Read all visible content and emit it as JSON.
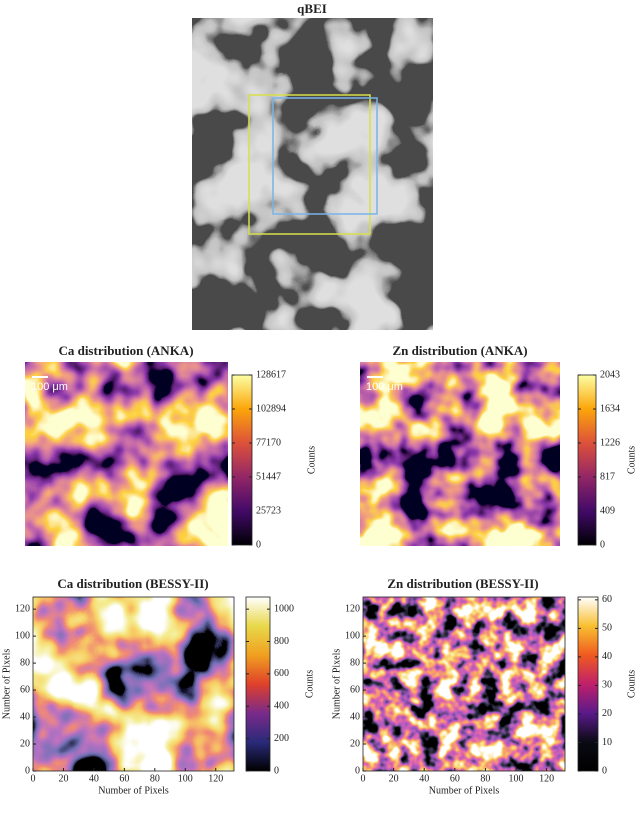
{
  "chart_data": [
    {
      "type": "image",
      "title": "qBEI",
      "colormap": "gray"
    },
    {
      "type": "heatmap",
      "title": "Ca distribution (ANKA)",
      "annotation": "100 μm",
      "colormap": "inferno",
      "clim": [
        0,
        128617
      ],
      "cticks": [
        0,
        25723,
        51447,
        77170,
        102894,
        128617
      ],
      "colorbar_label": "Counts"
    },
    {
      "type": "heatmap",
      "title": "Zn distribution (ANKA)",
      "annotation": "100 μm",
      "colormap": "inferno",
      "clim": [
        0,
        2043
      ],
      "cticks": [
        0,
        409,
        817,
        1226,
        1634,
        2043
      ],
      "colorbar_label": "Counts"
    },
    {
      "type": "heatmap",
      "title": "Ca distribution (BESSY-II)",
      "xlabel": "Number of Pixels",
      "ylabel": "Number of Pixels",
      "xlim": [
        0,
        132
      ],
      "ylim": [
        0,
        129
      ],
      "xticks": [
        0,
        20,
        40,
        60,
        80,
        100,
        120
      ],
      "yticks": [
        0,
        20,
        40,
        60,
        80,
        100,
        120
      ],
      "colormap": "CMRmap",
      "clim": [
        0,
        1075
      ],
      "cticks": [
        0,
        200,
        400,
        600,
        800,
        1000
      ],
      "colorbar_label": "Counts"
    },
    {
      "type": "heatmap",
      "title": "Zn distribution (BESSY-II)",
      "xlabel": "Number of Pixels",
      "ylabel": "Number of Pixels",
      "xlim": [
        0,
        132
      ],
      "ylim": [
        0,
        129
      ],
      "xticks": [
        0,
        20,
        40,
        60,
        80,
        100,
        120
      ],
      "yticks": [
        0,
        20,
        40,
        60,
        80,
        100,
        120
      ],
      "colormap": "gnuplot2",
      "clim": [
        0,
        61
      ],
      "cticks": [
        0,
        10,
        20,
        30,
        40,
        50,
        60
      ],
      "colorbar_label": "Counts"
    }
  ]
}
